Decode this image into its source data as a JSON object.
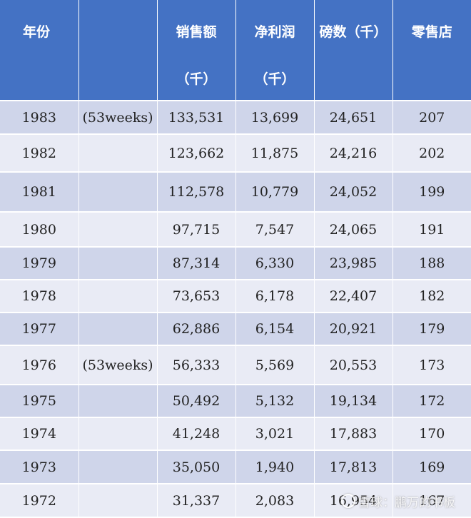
{
  "header": {
    "year": "年份",
    "note": "",
    "sales": [
      "销售额",
      "（千）"
    ],
    "profit": [
      "净利润",
      "（千）"
    ],
    "pounds": "磅数（千）",
    "stores": "零售店"
  },
  "rows": [
    {
      "year": "1983",
      "note": "(53weeks)",
      "sales": "133,531",
      "profit": "13,699",
      "pounds": "24,651",
      "stores": "207"
    },
    {
      "year": "1982",
      "note": "",
      "sales": "123,662",
      "profit": "11,875",
      "pounds": "24,216",
      "stores": "202"
    },
    {
      "year": "1981",
      "note": "",
      "sales": "112,578",
      "profit": "10,779",
      "pounds": "24,052",
      "stores": "199"
    },
    {
      "year": "1980",
      "note": "",
      "sales": "97,715",
      "profit": "7,547",
      "pounds": "24,065",
      "stores": "191"
    },
    {
      "year": "1979",
      "note": "",
      "sales": "87,314",
      "profit": "6,330",
      "pounds": "23,985",
      "stores": "188"
    },
    {
      "year": "1978",
      "note": "",
      "sales": "73,653",
      "profit": "6,178",
      "pounds": "22,407",
      "stores": "182"
    },
    {
      "year": "1977",
      "note": "",
      "sales": "62,886",
      "profit": "6,154",
      "pounds": "20,921",
      "stores": "179"
    },
    {
      "year": "1976",
      "note": "(53weeks)",
      "sales": "56,333",
      "profit": "5,569",
      "pounds": "20,553",
      "stores": "173"
    },
    {
      "year": "1975",
      "note": "",
      "sales": "50,492",
      "profit": "5,132",
      "pounds": "19,134",
      "stores": "172"
    },
    {
      "year": "1974",
      "note": "",
      "sales": "41,248",
      "profit": "3,021",
      "pounds": "17,883",
      "stores": "170"
    },
    {
      "year": "1973",
      "note": "",
      "sales": "35,050",
      "profit": "1,940",
      "pounds": "17,813",
      "stores": "169"
    },
    {
      "year": "1972",
      "note": "",
      "sales": "31,337",
      "profit": "2,083",
      "pounds": "16,954",
      "stores": "167"
    }
  ],
  "watermark": {
    "text": "雪球：鹏万的书板",
    "icon": "snowball-logo-icon"
  },
  "colors": {
    "header_bg": "#4472c4",
    "row_odd": "#cfd5ea",
    "row_even": "#e9ebf5"
  }
}
